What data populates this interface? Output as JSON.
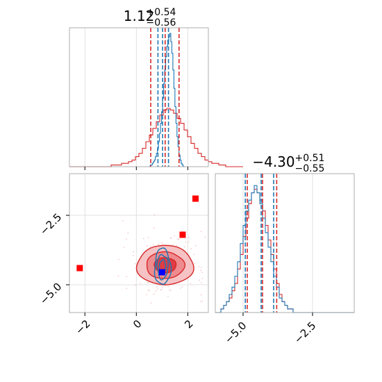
{
  "chart_data": [
    {
      "type": "histogram",
      "panel": "top-left",
      "title_value": "1.12",
      "title_plus": "+0.54",
      "title_minus": "−0.56",
      "xlim": [
        -2.6,
        2.8
      ],
      "x_ticks": [
        -2,
        0,
        2
      ],
      "tick_labels_shown": false,
      "grid": true,
      "series": [
        {
          "color": "#d62728",
          "bin_start": -2.6,
          "bin_width": 0.135,
          "counts": [
            0,
            0,
            0,
            0,
            0,
            0,
            0,
            0,
            0,
            0,
            0,
            0,
            1,
            1,
            1,
            2,
            2,
            3,
            4,
            6,
            8,
            11,
            15,
            19,
            23,
            27,
            31,
            34,
            35,
            34,
            32,
            29,
            26,
            22,
            18,
            14,
            11,
            8,
            6,
            4,
            3,
            2,
            2,
            1,
            1,
            0,
            0,
            0,
            0,
            0
          ],
          "quantile_lines": [
            0.56,
            1.12,
            1.66
          ]
        },
        {
          "color": "#1f77b4",
          "bin_start": 0.5,
          "bin_width": 0.04,
          "counts": [
            0,
            1,
            1,
            2,
            3,
            4,
            6,
            8,
            11,
            15,
            20,
            26,
            33,
            41,
            50,
            58,
            66,
            72,
            76,
            78,
            80,
            75,
            68,
            58,
            47,
            36,
            26,
            18,
            12,
            7,
            4,
            2,
            1,
            0,
            0
          ],
          "quantile_lines": [
            0.84,
            1.02,
            1.25
          ]
        }
      ]
    },
    {
      "type": "histogram",
      "panel": "bottom-right",
      "title_value": "−4.30",
      "title_plus": "+0.51",
      "title_minus": "−0.55",
      "xlim": [
        -6.0,
        -1.0
      ],
      "x_ticks": [
        -5.0,
        -2.5
      ],
      "x_tick_labels": [
        "−5.0",
        "−2.5"
      ],
      "grid": true,
      "series": [
        {
          "color": "#d62728",
          "bin_start": -6.0,
          "bin_width": 0.1,
          "counts": [
            0,
            0,
            1,
            2,
            3,
            4,
            6,
            8,
            12,
            16,
            21,
            26,
            30,
            33,
            34,
            33,
            31,
            28,
            24,
            20,
            16,
            12,
            8,
            5,
            3,
            2,
            1,
            1,
            0,
            0,
            0,
            0,
            0,
            0,
            0,
            0,
            0,
            0,
            0,
            0,
            0,
            0,
            0,
            0,
            0,
            0,
            0,
            0,
            0,
            0
          ],
          "quantile_lines": [
            -4.85,
            -4.3,
            -3.79
          ]
        },
        {
          "color": "#1f77b4",
          "bin_start": -6.0,
          "bin_width": 0.1,
          "counts": [
            0,
            0,
            1,
            2,
            3,
            5,
            7,
            10,
            14,
            19,
            24,
            28,
            31,
            33,
            35,
            33,
            30,
            26,
            22,
            18,
            14,
            10,
            7,
            4,
            3,
            2,
            1,
            1,
            0,
            0,
            0,
            0,
            0,
            0,
            0,
            0,
            0,
            0,
            0,
            0,
            0,
            0,
            0,
            0,
            0,
            0,
            0,
            0,
            0,
            0
          ],
          "quantile_lines": [
            -4.92,
            -4.35,
            -3.9
          ]
        }
      ]
    },
    {
      "type": "scatter",
      "panel": "bottom-left",
      "xlim": [
        -2.6,
        2.8
      ],
      "ylim": [
        -6.0,
        -1.0
      ],
      "x_ticks": [
        -2,
        0,
        2
      ],
      "x_tick_labels": [
        "−2",
        "0",
        "2"
      ],
      "y_ticks": [
        -2.5,
        -5.0
      ],
      "y_tick_labels": [
        "−2.5",
        "−5.0"
      ],
      "grid": true,
      "contours_red": {
        "color": "#d62728",
        "center": [
          1.12,
          -4.3
        ],
        "levels": [
          {
            "rx": 2.2,
            "ry": 1.42,
            "fill": "#f6c2c4"
          },
          {
            "rx": 1.48,
            "ry": 0.96,
            "fill": "#ee8b8f"
          },
          {
            "rx": 0.85,
            "ry": 0.56,
            "fill": "#e03c42"
          }
        ]
      },
      "contours_blue": {
        "color": "#1f77b4",
        "center": [
          1.02,
          -4.35
        ],
        "levels": [
          {
            "rx": 0.62,
            "ry": 1.3
          },
          {
            "rx": 0.42,
            "ry": 0.88
          },
          {
            "rx": 0.24,
            "ry": 0.5
          }
        ]
      },
      "markers_red": [
        {
          "x": 2.3,
          "y": -1.9
        },
        {
          "x": 1.8,
          "y": -3.2
        },
        {
          "x": -2.2,
          "y": -4.4
        }
      ],
      "marker_blue": {
        "x": 1.0,
        "y": -4.55
      },
      "marker_red_color": "#ff0000",
      "marker_blue_color": "#0000ff"
    }
  ]
}
